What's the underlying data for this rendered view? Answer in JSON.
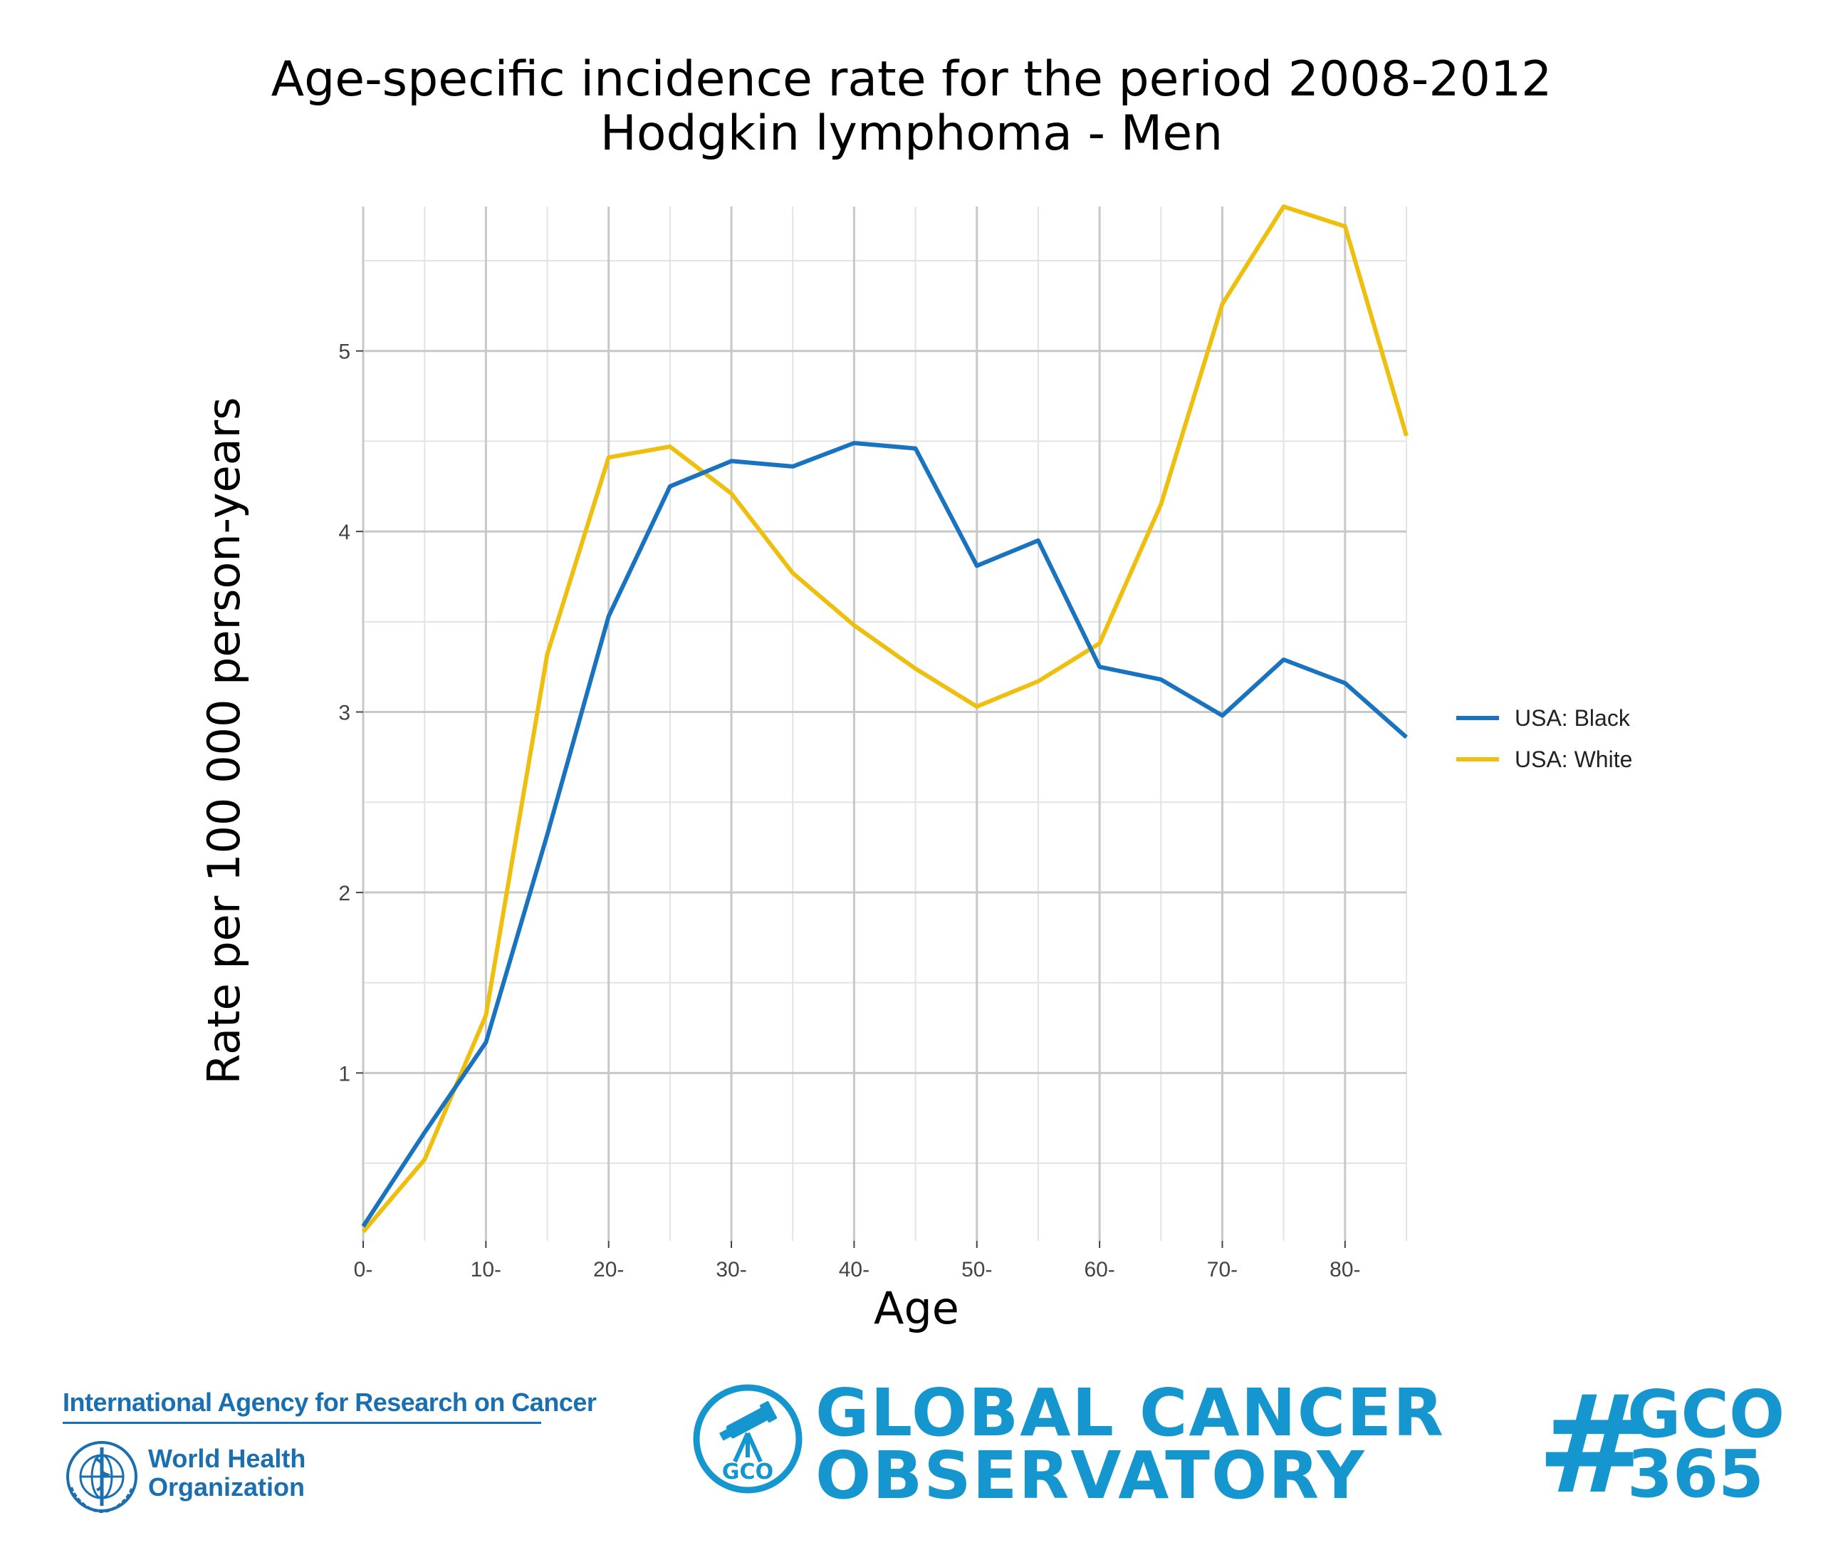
{
  "header": {
    "title_line1": "Age-specific incidence rate for the period 2008-2012",
    "title_line2": "Hodgkin lymphoma - Men"
  },
  "chart_data": {
    "type": "line",
    "title": "Age-specific incidence rate for the period 2008-2012 Hodgkin lymphoma - Men",
    "xlabel": "Age",
    "ylabel": "Rate per 100 000 person-years",
    "x": [
      0,
      5,
      10,
      15,
      20,
      25,
      30,
      35,
      40,
      45,
      50,
      55,
      60,
      65,
      70,
      75,
      80,
      85
    ],
    "x_tick_values": [
      0,
      10,
      20,
      30,
      40,
      50,
      60,
      70,
      80
    ],
    "x_tick_labels": [
      "0-",
      "10-",
      "20-",
      "30-",
      "40-",
      "50-",
      "60-",
      "70-",
      "80-"
    ],
    "y_tick_values": [
      1,
      2,
      3,
      4,
      5
    ],
    "y_tick_labels": [
      "1",
      "2",
      "3",
      "4",
      "5"
    ],
    "xlim": [
      0,
      85
    ],
    "ylim": [
      0.07,
      5.8
    ],
    "grid": true,
    "legend_position": "right",
    "series": [
      {
        "name": "USA: Black",
        "color": "#1a73bf",
        "values": [
          0.15,
          0.67,
          1.17,
          2.32,
          3.53,
          4.25,
          4.39,
          4.36,
          4.49,
          4.46,
          3.81,
          3.95,
          3.25,
          3.18,
          2.98,
          3.29,
          3.16,
          2.86
        ]
      },
      {
        "name": "USA: White",
        "color": "#efbf10",
        "values": [
          0.12,
          0.52,
          1.32,
          3.32,
          4.41,
          4.47,
          4.21,
          3.77,
          3.48,
          3.24,
          3.03,
          3.17,
          3.38,
          4.15,
          5.26,
          5.8,
          5.69,
          4.53
        ]
      }
    ]
  },
  "footer": {
    "iarc_name": "International Agency for Research on Cancer",
    "who_line1": "World Health",
    "who_line2": "Organization",
    "gco_line1": "GLOBAL CANCER",
    "gco_line2": "OBSERVATORY",
    "gco_emblem_text": "GCO",
    "hashtag_symbol": "#",
    "hashtag_line1": "GCO",
    "hashtag_line2": "365"
  },
  "colors": {
    "brand_blue": "#1596cf",
    "who_blue": "#1a6fb0"
  }
}
